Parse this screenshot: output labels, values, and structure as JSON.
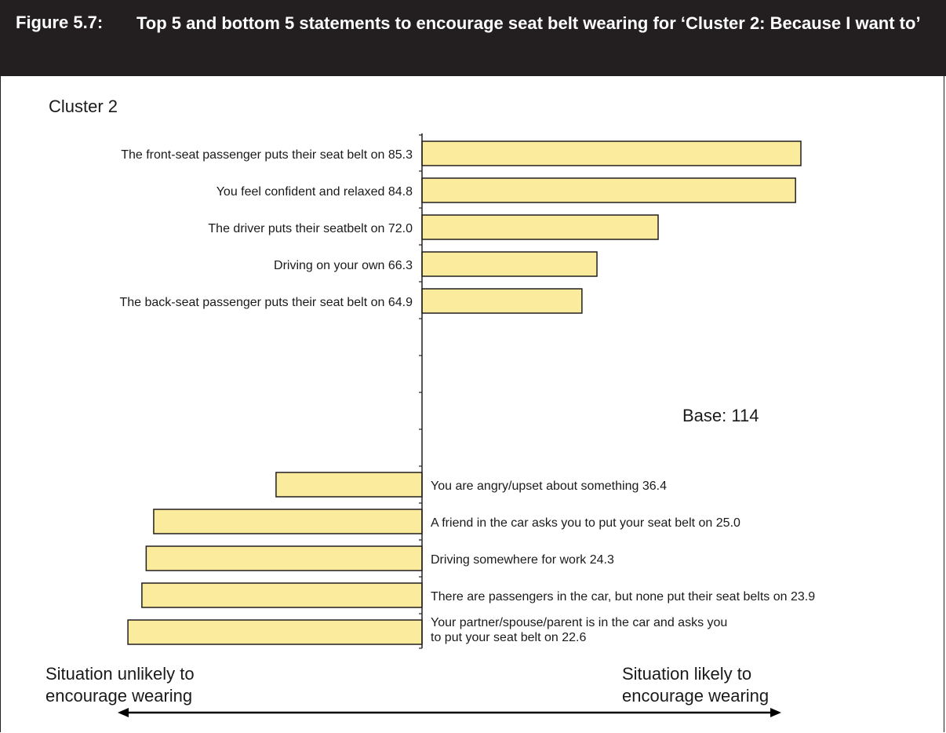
{
  "figure": {
    "number": "Figure 5.7:",
    "title": "Top 5 and bottom 5 statements to encourage seat belt wearing for ‘Cluster 2: Because I want to’"
  },
  "panel_label": "Cluster 2",
  "base_label": "Base: 114",
  "scale": {
    "left_label": "Situation unlikely to encourage wearing",
    "left_lines": [
      "Situation unlikely to",
      "encourage wearing"
    ],
    "right_label": "Situation likely to encourage wearing",
    "right_lines": [
      "Situation likely to",
      "encourage wearing"
    ]
  },
  "colors": {
    "bar_fill": "#fbeb9c",
    "bar_stroke": "#231f20",
    "header_bg": "#231f20"
  },
  "chart_data": {
    "type": "bar",
    "orientation": "horizontal",
    "title": "Cluster 2",
    "midpoint": 50,
    "grid": false,
    "top_statements": [
      {
        "label": "The front-seat passenger puts their seat belt on",
        "value": 85.3
      },
      {
        "label": "You feel confident and relaxed",
        "value": 84.8
      },
      {
        "label": "The driver puts their seatbelt on",
        "value": 72.0
      },
      {
        "label": "Driving on your own",
        "value": 66.3
      },
      {
        "label": "The back-seat passenger puts their seat belt on",
        "value": 64.9
      }
    ],
    "bottom_statements": [
      {
        "label": "You are angry/upset about something",
        "value": 36.4
      },
      {
        "label": "A friend in the car asks you to put your seat belt on",
        "value": 25.0
      },
      {
        "label": "Driving somewhere for work",
        "value": 24.3
      },
      {
        "label": "There are passengers in the car, but none put their seat belts on",
        "value": 23.9
      },
      {
        "label": "Your partner/spouse/parent is in the car and asks you to put your seat belt on",
        "value": 22.6
      }
    ]
  }
}
